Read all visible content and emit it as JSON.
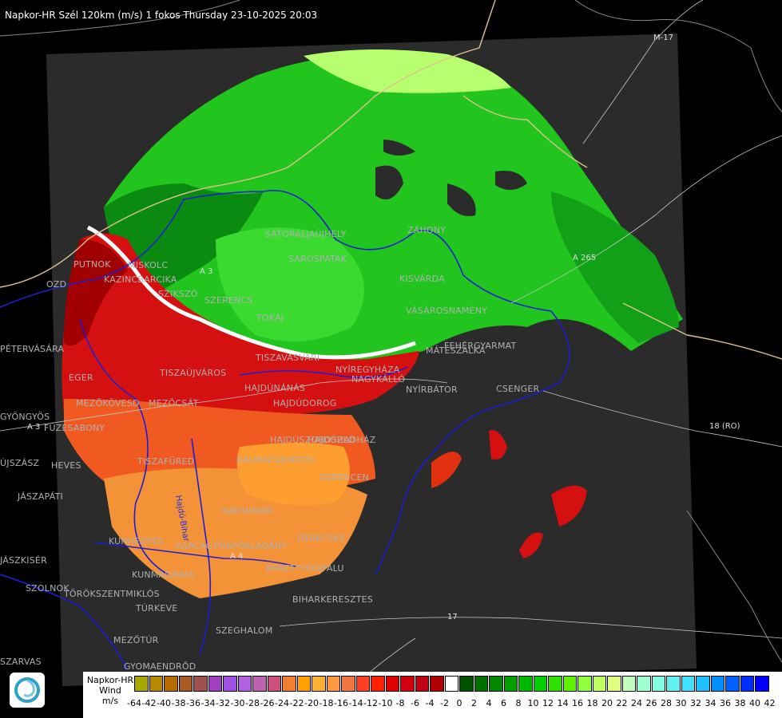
{
  "header": {
    "title": "Napkor-HR Szél 120km (m/s) 1 fokos Thursday 23-10-2025 20:03"
  },
  "places": [
    {
      "name": "PUTNOK"
    },
    {
      "name": "KAZINCBARCIKA"
    },
    {
      "name": "SZIKSZÓ"
    },
    {
      "name": "SZERENCS"
    },
    {
      "name": "TOKAJ"
    },
    {
      "name": "MISKOLC"
    },
    {
      "name": "SÁTORALJAÚJHELY"
    },
    {
      "name": "SÁROSPATAK"
    },
    {
      "name": "ZÁHONY"
    },
    {
      "name": "KISVÁRDA"
    },
    {
      "name": "VÁSÁROSNAMÉNY"
    },
    {
      "name": "MÁTÉSZALKA"
    },
    {
      "name": "FEHÉRGYARMAT"
    },
    {
      "name": "CSENGER"
    },
    {
      "name": "NYÍRBÁTOR"
    },
    {
      "name": "NAGYKÁLLÓ"
    },
    {
      "name": "NYÍREGYHÁZA"
    },
    {
      "name": "TISZAVASVÁRI"
    },
    {
      "name": "HAJDÚNÁNÁS"
    },
    {
      "name": "HAJDÚDOROG"
    },
    {
      "name": "TISZAÚJVÁROS"
    },
    {
      "name": "EGER"
    },
    {
      "name": "PÉTERVÁSÁRA"
    },
    {
      "name": "MEZŐKÖVESD"
    },
    {
      "name": "MEZŐCSÁT"
    },
    {
      "name": "FÜZESABONY"
    },
    {
      "name": "GYÖNGYÖS"
    },
    {
      "name": "HEVES"
    },
    {
      "name": "JÁSZAPÁTI"
    },
    {
      "name": "OZD"
    },
    {
      "name": "TISZAFÜRED"
    },
    {
      "name": "HAJDÚSZOBOSZLÓ"
    },
    {
      "name": "HAJDÚHADHÁZ"
    },
    {
      "name": "BALMAZÚJVÁROS"
    },
    {
      "name": "DEBRECEN"
    },
    {
      "name": "NÁDUDVAR"
    },
    {
      "name": "DERECSKE"
    },
    {
      "name": "KUNHEGYES"
    },
    {
      "name": "KARCAG"
    },
    {
      "name": "PÜSPÖKLADÁNY"
    },
    {
      "name": "BERETTYÓÚJFALU"
    },
    {
      "name": "BIHARKERESZTES"
    },
    {
      "name": "KUNMADARAS"
    },
    {
      "name": "TÖRÖKSZENTMIKLÓS"
    },
    {
      "name": "TÚRKEVE"
    },
    {
      "name": "SZOLNOK"
    },
    {
      "name": "SZEGHALOM"
    },
    {
      "name": "MEZŐTÚR"
    },
    {
      "name": "GYOMAENDRŐD"
    },
    {
      "name": "SZARVAS"
    },
    {
      "name": "ÚJSZÁSZ"
    },
    {
      "name": "JÁSZKISÉR"
    },
    {
      "name": "DEBRECEN"
    }
  ],
  "roads": [
    {
      "label": "M-17"
    },
    {
      "label": "A 265"
    },
    {
      "label": "A 3"
    },
    {
      "label": "A 3"
    },
    {
      "label": "18 (RO)"
    },
    {
      "label": "17"
    },
    {
      "label": "Hajdú-Bihar"
    },
    {
      "label": "A 4"
    }
  ],
  "legend": {
    "title_lines": [
      "Napkor-HR",
      "Wind",
      "m/s"
    ],
    "ticks": [
      "-64",
      "-42",
      "-40",
      "-38",
      "-36",
      "-34",
      "-32",
      "-30",
      "-28",
      "-26",
      "-24",
      "-22",
      "-20",
      "-18",
      "-16",
      "-14",
      "-12",
      "-10",
      "-8",
      "-6",
      "-4",
      "-2",
      "0",
      "2",
      "4",
      "6",
      "8",
      "10",
      "12",
      "14",
      "16",
      "18",
      "20",
      "22",
      "24",
      "26",
      "28",
      "30",
      "32",
      "34",
      "36",
      "38",
      "40",
      "42"
    ],
    "colors": [
      "#a8a800",
      "#b88a00",
      "#b86c00",
      "#a85a20",
      "#a05050",
      "#a040c0",
      "#a050e0",
      "#b060e0",
      "#c060b0",
      "#d05080",
      "#f08030",
      "#ffa000",
      "#ffb030",
      "#ff9840",
      "#f07840",
      "#ff4020",
      "#ff2000",
      "#e00000",
      "#d00010",
      "#c00010",
      "#b00000",
      "#ffffff",
      "#005000",
      "#007000",
      "#008800",
      "#00a000",
      "#00b800",
      "#00d000",
      "#30e000",
      "#60f000",
      "#90ff40",
      "#c0ff60",
      "#e0ff80",
      "#c0ffc0",
      "#a0ffd0",
      "#80ffe0",
      "#60f0f0",
      "#40e0ff",
      "#20c0ff",
      "#0090ff",
      "#0060ff",
      "#0030ff",
      "#0000ff"
    ]
  },
  "colors": {
    "background": "#000000",
    "radar_extent": "#2b2b2b",
    "borders": "#1e1ed0",
    "country_border": "#e0c090",
    "roads": "#c8c8c8"
  }
}
